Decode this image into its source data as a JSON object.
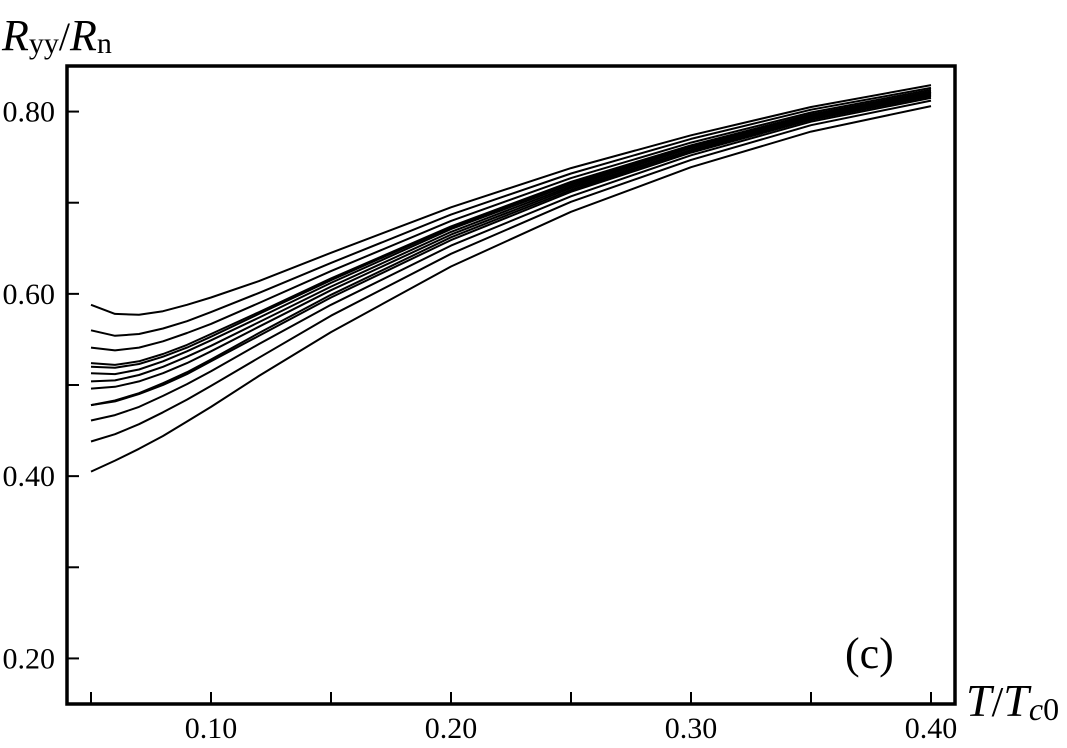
{
  "chart_data": {
    "type": "line",
    "xlabel": {
      "main": "T",
      "sep": "/",
      "sym": "T",
      "sub_italic": "c",
      "sub_roman": "0"
    },
    "ylabel": {
      "main": "R",
      "sub": "yy",
      "sep": "/",
      "main2": "R",
      "sub2": "n"
    },
    "annotation": "(c)",
    "xlim": [
      0.04,
      0.41
    ],
    "ylim": [
      0.15,
      0.85
    ],
    "xticks_major": [
      {
        "value": 0.1,
        "label": "0.10"
      },
      {
        "value": 0.2,
        "label": "0.20"
      },
      {
        "value": 0.3,
        "label": "0.30"
      },
      {
        "value": 0.4,
        "label": "0.40"
      }
    ],
    "xticks_minor": [
      0.05,
      0.15,
      0.25,
      0.35
    ],
    "yticks_major": [
      {
        "value": 0.2,
        "label": "0.20"
      },
      {
        "value": 0.4,
        "label": "0.40"
      },
      {
        "value": 0.6,
        "label": "0.60"
      },
      {
        "value": 0.8,
        "label": "0.80"
      }
    ],
    "yticks_minor": [
      0.3,
      0.5,
      0.7
    ],
    "grid": false,
    "x": [
      0.05,
      0.06,
      0.07,
      0.08,
      0.09,
      0.1,
      0.12,
      0.15,
      0.2,
      0.25,
      0.3,
      0.35,
      0.4
    ],
    "series": [
      {
        "values": [
          0.588,
          0.578,
          0.577,
          0.581,
          0.588,
          0.596,
          0.614,
          0.645,
          0.695,
          0.738,
          0.774,
          0.805,
          0.829
        ]
      },
      {
        "values": [
          0.56,
          0.554,
          0.556,
          0.562,
          0.57,
          0.58,
          0.601,
          0.634,
          0.687,
          0.732,
          0.77,
          0.802,
          0.826
        ]
      },
      {
        "values": [
          0.541,
          0.538,
          0.541,
          0.548,
          0.557,
          0.567,
          0.59,
          0.625,
          0.68,
          0.727,
          0.766,
          0.799,
          0.824
        ]
      },
      {
        "values": [
          0.524,
          0.522,
          0.526,
          0.534,
          0.544,
          0.556,
          0.58,
          0.617,
          0.674,
          0.723,
          0.763,
          0.797,
          0.822
        ]
      },
      {
        "values": [
          0.513,
          0.512,
          0.517,
          0.526,
          0.537,
          0.549,
          0.574,
          0.612,
          0.671,
          0.72,
          0.761,
          0.795,
          0.821
        ]
      },
      {
        "values": [
          0.504,
          0.505,
          0.511,
          0.52,
          0.531,
          0.543,
          0.569,
          0.608,
          0.668,
          0.718,
          0.76,
          0.794,
          0.82
        ]
      },
      {
        "values": [
          0.496,
          0.498,
          0.504,
          0.513,
          0.524,
          0.537,
          0.564,
          0.604,
          0.665,
          0.716,
          0.758,
          0.793,
          0.819
        ]
      },
      {
        "values": [
          0.478,
          0.482,
          0.49,
          0.5,
          0.512,
          0.526,
          0.554,
          0.596,
          0.659,
          0.712,
          0.755,
          0.791,
          0.817
        ]
      },
      {
        "values": [
          0.461,
          0.467,
          0.476,
          0.488,
          0.501,
          0.515,
          0.545,
          0.588,
          0.653,
          0.707,
          0.752,
          0.789,
          0.815
        ]
      },
      {
        "values": [
          0.438,
          0.446,
          0.457,
          0.47,
          0.484,
          0.499,
          0.53,
          0.576,
          0.644,
          0.701,
          0.747,
          0.785,
          0.812
        ]
      },
      {
        "values": [
          0.405,
          0.417,
          0.43,
          0.444,
          0.46,
          0.476,
          0.51,
          0.558,
          0.63,
          0.69,
          0.739,
          0.778,
          0.806
        ]
      },
      {
        "values": [
          0.478,
          0.483,
          0.491,
          0.502,
          0.514,
          0.528,
          0.557,
          0.599,
          0.662,
          0.714,
          0.757,
          0.792,
          0.818
        ]
      },
      {
        "values": [
          0.52,
          0.519,
          0.523,
          0.531,
          0.541,
          0.553,
          0.578,
          0.615,
          0.673,
          0.722,
          0.762,
          0.796,
          0.822
        ]
      }
    ]
  }
}
